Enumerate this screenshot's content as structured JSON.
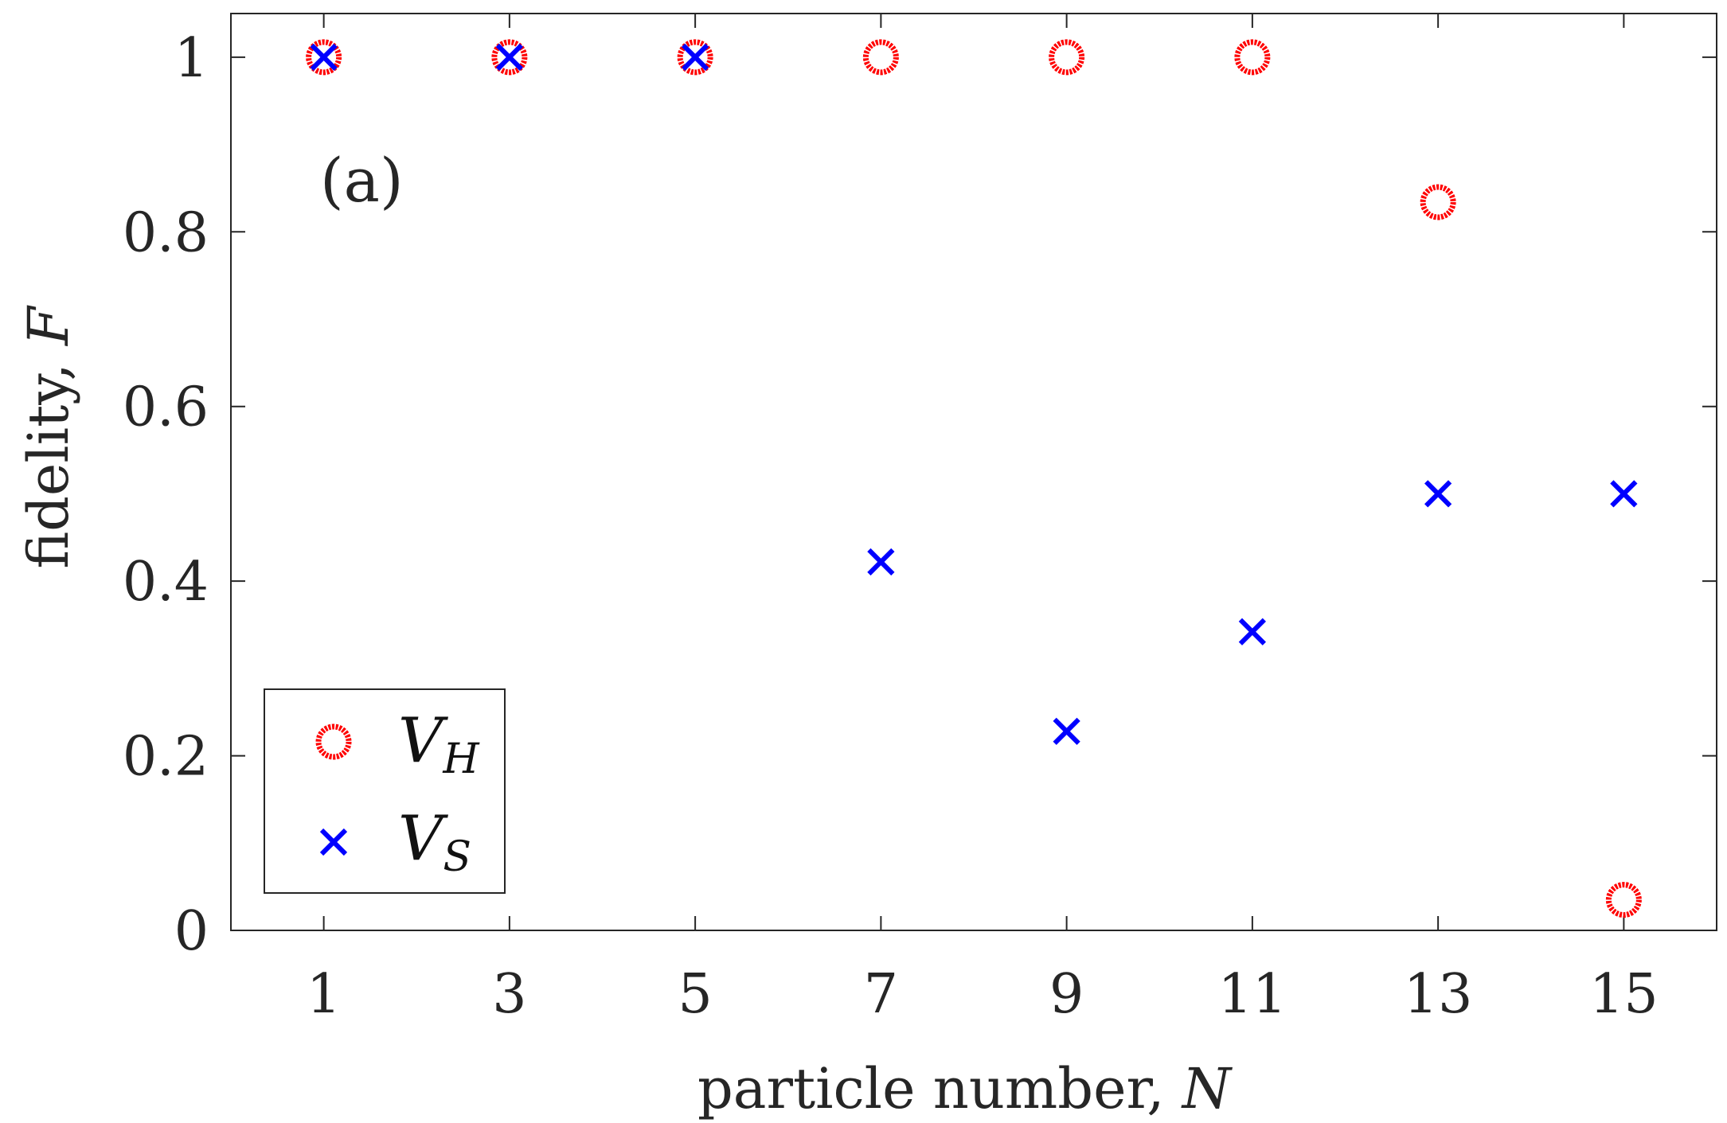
{
  "chart_data": {
    "type": "scatter",
    "title": "",
    "panel_label": "(a)",
    "xlabel": "particle number, ",
    "xlabel_var": "N",
    "ylabel": "fidelity, ",
    "ylabel_var": "F",
    "xlim": [
      0,
      16
    ],
    "ylim": [
      0,
      1.05
    ],
    "xticks": [
      1,
      3,
      5,
      7,
      9,
      11,
      13,
      15
    ],
    "xtick_labels": [
      "1",
      "3",
      "5",
      "7",
      "9",
      "11",
      "13",
      "15"
    ],
    "yticks": [
      0,
      0.2,
      0.4,
      0.6,
      0.8,
      1
    ],
    "ytick_labels": [
      "0",
      "0.2",
      "0.4",
      "0.6",
      "0.8",
      "1"
    ],
    "grid": false,
    "legend_position": "bottom-left",
    "series": [
      {
        "name": "V",
        "subscript": "H",
        "marker": "circle",
        "color": "#ff0000",
        "x": [
          1,
          3,
          5,
          7,
          9,
          11,
          13,
          15
        ],
        "y": [
          1.0,
          1.0,
          1.0,
          1.0,
          1.0,
          1.0,
          0.834,
          0.035
        ]
      },
      {
        "name": "V",
        "subscript": "S",
        "marker": "x",
        "color": "#0000ff",
        "x": [
          1,
          3,
          5,
          7,
          9,
          11,
          13,
          15
        ],
        "y": [
          1.0,
          1.0,
          1.0,
          0.422,
          0.228,
          0.342,
          0.5,
          0.5
        ]
      }
    ]
  }
}
